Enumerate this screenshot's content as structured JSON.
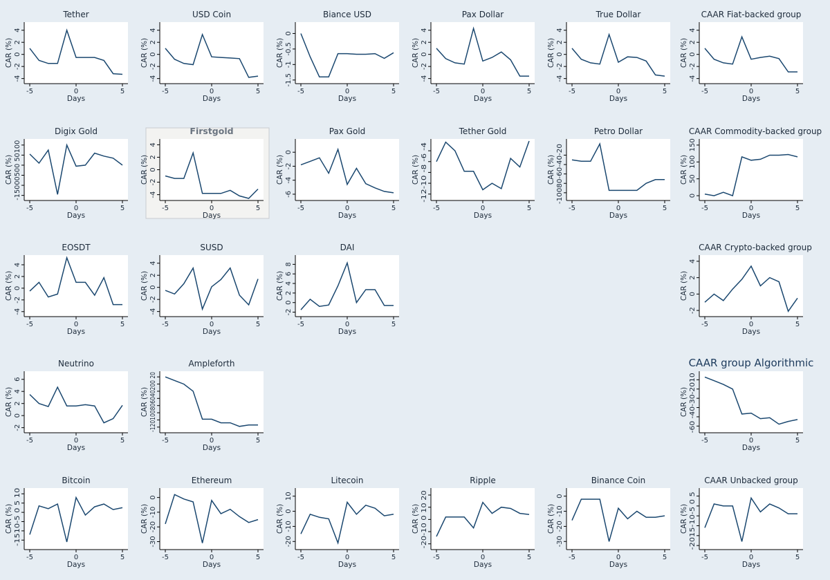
{
  "figure": {
    "background": "#e6edf3",
    "line_color": "#1a476f"
  },
  "chart_data": [
    {
      "type": "line",
      "title": "Tether",
      "xlabel": "Days",
      "ylabel": "CAR (%)",
      "x": [
        -5,
        -4,
        -3,
        -2,
        -1,
        0,
        1,
        2,
        3,
        4,
        5
      ],
      "values": [
        1,
        -1,
        -1.5,
        -1.5,
        4,
        -0.5,
        -0.5,
        -0.5,
        -1,
        -3.2,
        -3.3
      ],
      "ylim": [
        -4.5,
        5
      ],
      "yticks": [
        -4,
        -2,
        0,
        2,
        4
      ],
      "xticks": [
        -5,
        0,
        5
      ]
    },
    {
      "type": "line",
      "title": "USD Coin",
      "xlabel": "Days",
      "ylabel": "CAR (%)",
      "x": [
        -5,
        -4,
        -3,
        -2,
        -1,
        0,
        1,
        2,
        3,
        4,
        5
      ],
      "values": [
        1,
        -0.8,
        -1.5,
        -1.7,
        3.3,
        -0.4,
        -0.5,
        -0.6,
        -0.7,
        -3.8,
        -3.6
      ],
      "ylim": [
        -4.5,
        5
      ],
      "yticks": [
        -4,
        -2,
        0,
        2,
        4
      ],
      "xticks": [
        -5,
        0,
        5
      ]
    },
    {
      "type": "line",
      "title": "Biance USD",
      "xlabel": "Days",
      "ylabel": "CAR (%)",
      "x": [
        -5,
        -4,
        -3,
        -2,
        -1,
        0,
        1,
        2,
        3,
        4,
        5
      ],
      "values": [
        0,
        -0.75,
        -1.4,
        -1.4,
        -0.65,
        -0.65,
        -0.67,
        -0.67,
        -0.65,
        -0.8,
        -0.62
      ],
      "ylim": [
        -1.55,
        0.3
      ],
      "yticks": [
        -1.5,
        -1,
        -0.5,
        0
      ],
      "xticks": [
        -5,
        0,
        5
      ]
    },
    {
      "type": "line",
      "title": "Pax Dollar",
      "xlabel": "Days",
      "ylabel": "CAR (%)",
      "x": [
        -5,
        -4,
        -3,
        -2,
        -1,
        0,
        1,
        2,
        3,
        4,
        5
      ],
      "values": [
        1,
        -0.7,
        -1.4,
        -1.6,
        4.3,
        -1.1,
        -0.5,
        0.4,
        -0.9,
        -3.6,
        -3.6
      ],
      "ylim": [
        -4.5,
        5
      ],
      "yticks": [
        -4,
        -2,
        0,
        2,
        4
      ],
      "xticks": [
        -5,
        0,
        5
      ]
    },
    {
      "type": "line",
      "title": "True Dollar",
      "xlabel": "Days",
      "ylabel": "CAR (%)",
      "x": [
        -5,
        -4,
        -3,
        -2,
        -1,
        0,
        1,
        2,
        3,
        4,
        5
      ],
      "values": [
        1,
        -0.8,
        -1.4,
        -1.6,
        3.3,
        -1.3,
        -0.4,
        -0.5,
        -1.1,
        -3.4,
        -3.6
      ],
      "ylim": [
        -4.5,
        5
      ],
      "yticks": [
        -4,
        -2,
        0,
        2,
        4
      ],
      "xticks": [
        -5,
        0,
        5
      ]
    },
    {
      "type": "line",
      "title": "CAAR Fiat-backed group",
      "xlabel": "Days",
      "ylabel": "CAR (%)",
      "x": [
        -5,
        -4,
        -3,
        -2,
        -1,
        0,
        1,
        2,
        3,
        4,
        5
      ],
      "values": [
        1,
        -0.8,
        -1.4,
        -1.6,
        2.9,
        -0.8,
        -0.5,
        -0.3,
        -0.7,
        -2.9,
        -2.9
      ],
      "ylim": [
        -4.5,
        5
      ],
      "yticks": [
        -4,
        -2,
        0,
        2,
        4
      ],
      "xticks": [
        -5,
        0,
        5
      ]
    },
    {
      "type": "line",
      "title": "Digix Gold",
      "xlabel": "Days",
      "ylabel": "CAR (%)",
      "x": [
        -5,
        -4,
        -3,
        -2,
        -1,
        0,
        1,
        2,
        3,
        4,
        5
      ],
      "values": [
        55,
        10,
        75,
        -145,
        100,
        -5,
        0,
        60,
        45,
        35,
        0
      ],
      "ylim": [
        -165,
        120
      ],
      "yticks": [
        -150,
        -100,
        -50,
        0,
        50,
        100
      ],
      "ytick_text": "-15000500 50100",
      "xticks": [
        -5,
        0,
        5
      ]
    },
    {
      "type": "line",
      "title": "Firstgold",
      "xlabel": "Days",
      "ylabel": "CAR (%)",
      "x": [
        -5,
        -4,
        -3,
        -2,
        -1,
        0,
        1,
        2,
        3,
        4,
        5
      ],
      "values": [
        -1,
        -1.4,
        -1.4,
        2.7,
        -3.8,
        -3.8,
        -3.8,
        -3.3,
        -4.2,
        -4.6,
        -3.1
      ],
      "ylim": [
        -4.6,
        4.6
      ],
      "yticks": [
        -4,
        -2,
        0,
        2,
        4
      ],
      "xticks": [
        -5,
        0,
        5
      ]
    },
    {
      "type": "line",
      "title": "Pax Gold",
      "xlabel": "Days",
      "ylabel": "CAR (%)",
      "x": [
        -5,
        -4,
        -3,
        -2,
        -1,
        0,
        1,
        2,
        3,
        4,
        5
      ],
      "values": [
        -1.8,
        -1.3,
        -0.8,
        -3,
        0.4,
        -4.6,
        -2.3,
        -4.5,
        -5.1,
        -5.6,
        -5.8
      ],
      "ylim": [
        -6.6,
        1.6
      ],
      "yticks": [
        -6,
        -4,
        -2,
        0
      ],
      "xticks": [
        -5,
        0,
        5
      ]
    },
    {
      "type": "line",
      "title": "Tether Gold",
      "xlabel": "Days",
      "ylabel": "CAR (%)",
      "x": [
        -5,
        -4,
        -3,
        -2,
        -1,
        0,
        1,
        2,
        3,
        4,
        5
      ],
      "values": [
        -6,
        -2.4,
        -4,
        -7.8,
        -7.8,
        -11.2,
        -10,
        -11,
        -5.4,
        -7,
        -2.2
      ],
      "ylim": [
        -12.8,
        -2.2
      ],
      "yticks": [
        -12,
        -10,
        -8,
        -6,
        -4
      ],
      "ytick_text": "-12-10 -8 -6 -4",
      "xticks": [
        -5,
        0,
        5
      ]
    },
    {
      "type": "line",
      "title": "Petro Dollar",
      "xlabel": "Days",
      "ylabel": "CAR (%)",
      "x": [
        -5,
        -4,
        -3,
        -2,
        -1,
        0,
        1,
        2,
        3,
        4,
        5
      ],
      "values": [
        -30,
        -33,
        -33,
        4,
        -95,
        -95,
        -95,
        -95,
        -80,
        -72,
        -72
      ],
      "ylim": [
        -112,
        10
      ],
      "yticks": [
        -100,
        -80,
        -60,
        -40,
        -20
      ],
      "ytick_text": "-10080-60-40-20",
      "xticks": [
        -5,
        0,
        5
      ]
    },
    {
      "type": "line",
      "title": "CAAR Commodity-backed group",
      "xlabel": "Days",
      "ylabel": "CAR (%)",
      "x": [
        -5,
        -4,
        -3,
        -2,
        -1,
        0,
        1,
        2,
        3,
        4,
        5
      ],
      "values": [
        5,
        0,
        10,
        0,
        115,
        105,
        108,
        120,
        120,
        122,
        115
      ],
      "ylim": [
        -8,
        162
      ],
      "yticks": [
        0,
        50,
        100,
        150
      ],
      "xticks": [
        -5,
        0,
        5
      ]
    },
    {
      "type": "line",
      "title": "EOSDT",
      "xlabel": "Days",
      "ylabel": "CAR (%)",
      "x": [
        -5,
        -4,
        -3,
        -2,
        -1,
        0,
        1,
        2,
        3,
        4,
        5
      ],
      "values": [
        -0.5,
        1,
        -1.5,
        -1,
        5.2,
        1,
        1,
        -1.2,
        1.8,
        -2.8,
        -2.8
      ],
      "ylim": [
        -4.5,
        5.3
      ],
      "yticks": [
        -4,
        -2,
        0,
        2,
        4
      ],
      "xticks": [
        -5,
        0,
        5
      ]
    },
    {
      "type": "line",
      "title": "SUSD",
      "xlabel": "Days",
      "ylabel": "CAR (%)",
      "x": [
        -5,
        -4,
        -3,
        -2,
        -1,
        0,
        1,
        2,
        3,
        4,
        5
      ],
      "values": [
        -0.5,
        -1.1,
        0.6,
        3.2,
        -3.6,
        0.1,
        1.3,
        3.2,
        -1.3,
        -2.9,
        1.4
      ],
      "ylim": [
        -4.5,
        5
      ],
      "yticks": [
        -4,
        -2,
        0,
        2,
        4
      ],
      "xticks": [
        -5,
        0,
        5
      ]
    },
    {
      "type": "line",
      "title": "DAI",
      "xlabel": "Days",
      "ylabel": "CAR (%)",
      "x": [
        -5,
        -4,
        -3,
        -2,
        -1,
        0,
        1,
        2,
        3,
        4,
        5
      ],
      "values": [
        -1.5,
        0.7,
        -0.8,
        -0.5,
        3.5,
        8.3,
        0,
        2.7,
        2.7,
        -0.6,
        -0.6
      ],
      "ylim": [
        -2.5,
        9.5
      ],
      "yticks": [
        -2,
        0,
        2,
        4,
        6,
        8
      ],
      "xticks": [
        -5,
        0,
        5
      ]
    },
    {
      "type": "line",
      "title": "CAAR Crypto-backed group",
      "xlabel": "Days",
      "ylabel": "CAR (%)",
      "x": [
        -5,
        -4,
        -3,
        -2,
        -1,
        0,
        1,
        2,
        3,
        4,
        5
      ],
      "values": [
        -1,
        0,
        -0.8,
        0.6,
        1.8,
        3.4,
        1,
        2,
        1.5,
        -2.1,
        -0.5
      ],
      "ylim": [
        -2.5,
        4.5
      ],
      "yticks": [
        -2,
        0,
        2,
        4
      ],
      "xticks": [
        -5,
        0,
        5
      ]
    },
    {
      "type": "line",
      "title": "Neutrino",
      "xlabel": "Days",
      "ylabel": "CAR (%)",
      "x": [
        -5,
        -4,
        -3,
        -2,
        -1,
        0,
        1,
        2,
        3,
        4,
        5
      ],
      "values": [
        3.5,
        2,
        1.5,
        4.7,
        1.6,
        1.6,
        1.8,
        1.6,
        -1.2,
        -0.5,
        1.7
      ],
      "ylim": [
        -2.5,
        7
      ],
      "yticks": [
        -2,
        0,
        2,
        4,
        6
      ],
      "xticks": [
        -5,
        0,
        5
      ]
    },
    {
      "type": "line",
      "title": "Ampleforth",
      "xlabel": "Days",
      "ylabel": "CAR (%)",
      "x": [
        -5,
        -4,
        -3,
        -2,
        -1,
        0,
        1,
        2,
        3,
        4,
        5
      ],
      "values": [
        20,
        10,
        0,
        -20,
        -98,
        -98,
        -108,
        -108,
        -118,
        -114,
        -114
      ],
      "ylim": [
        -130,
        30
      ],
      "yticks": [
        -120,
        -100,
        -80,
        -60,
        -40,
        -20,
        0,
        20
      ],
      "ytick_text": "-120100806040200 20",
      "xticks": [
        -5,
        0,
        5
      ]
    },
    {
      "type": "line",
      "title": "CAAR group Algorithmic",
      "xlabel": "Days",
      "ylabel": "CAR (%)",
      "x": [
        -5,
        -4,
        -3,
        -2,
        -1,
        0,
        1,
        2,
        3,
        4,
        5
      ],
      "values": [
        -7,
        -11,
        -15,
        -20,
        -47,
        -46,
        -52,
        -51,
        -58,
        -55,
        -53
      ],
      "ylim": [
        -65,
        -3
      ],
      "yticks": [
        -60,
        -50,
        -40,
        -30,
        -20,
        -10
      ],
      "ytick_text": "-60 -40-30-2010",
      "xticks": [
        -5,
        0,
        5
      ]
    },
    {
      "type": "line",
      "title": "Bitcoin",
      "xlabel": "Days",
      "ylabel": "CAR (%)",
      "x": [
        -5,
        -4,
        -3,
        -2,
        -1,
        0,
        1,
        2,
        3,
        4,
        5
      ],
      "values": [
        -12,
        3.5,
        2,
        4.5,
        -16,
        8,
        -1.5,
        3,
        4.5,
        1.5,
        2.5
      ],
      "ylim": [
        -19,
        12
      ],
      "yticks": [
        -15,
        -10,
        -5,
        0,
        5,
        10
      ],
      "ytick_text": "-1510-5 0 5 10",
      "xticks": [
        -5,
        0,
        5
      ]
    },
    {
      "type": "line",
      "title": "Ethereum",
      "xlabel": "Days",
      "ylabel": "CAR (%)",
      "x": [
        -5,
        -4,
        -3,
        -2,
        -1,
        0,
        1,
        2,
        3,
        4,
        5
      ],
      "values": [
        -18,
        2,
        -1,
        -3,
        -31,
        -2,
        -11,
        -8,
        -13,
        -17,
        -15
      ],
      "ylim": [
        -34,
        5
      ],
      "yticks": [
        -30,
        -20,
        -10,
        0
      ],
      "xticks": [
        -5,
        0,
        5
      ]
    },
    {
      "type": "line",
      "title": "Litecoin",
      "xlabel": "Days",
      "ylabel": "CAR (%)",
      "x": [
        -5,
        -4,
        -3,
        -2,
        -1,
        0,
        1,
        2,
        3,
        4,
        5
      ],
      "values": [
        -15,
        -2,
        -4,
        -5,
        -21,
        6,
        -2,
        4,
        2,
        -3,
        -2
      ],
      "ylim": [
        -24,
        14
      ],
      "yticks": [
        -20,
        -10,
        0,
        10
      ],
      "xticks": [
        -5,
        0,
        5
      ]
    },
    {
      "type": "line",
      "title": "Ripple",
      "xlabel": "Days",
      "ylabel": "CAR (%)",
      "x": [
        -5,
        -4,
        -3,
        -2,
        -1,
        0,
        1,
        2,
        3,
        4,
        5
      ],
      "values": [
        -14,
        2,
        2,
        2,
        -7,
        14,
        5,
        10,
        9,
        5,
        4
      ],
      "ylim": [
        -23,
        24
      ],
      "yticks": [
        -20,
        -10,
        0,
        10,
        20
      ],
      "ytick_text": "-20-10 0 10 20",
      "xticks": [
        -5,
        0,
        5
      ]
    },
    {
      "type": "line",
      "title": "Binance Coin",
      "xlabel": "Days",
      "ylabel": "CAR (%)",
      "x": [
        -5,
        -4,
        -3,
        -2,
        -1,
        0,
        1,
        2,
        3,
        4,
        5
      ],
      "values": [
        -16,
        -2,
        -2,
        -2,
        -30,
        -8,
        -15,
        -10,
        -14,
        -14,
        -13
      ],
      "ylim": [
        -34,
        4
      ],
      "yticks": [
        -30,
        -20,
        -10,
        0
      ],
      "xticks": [
        -5,
        0,
        5
      ]
    },
    {
      "type": "line",
      "title": "CAAR Unbacked group",
      "xlabel": "Days",
      "ylabel": "CAR (%)",
      "x": [
        -5,
        -4,
        -3,
        -2,
        -1,
        0,
        1,
        2,
        3,
        4,
        5
      ],
      "values": [
        -11,
        1,
        0,
        0,
        -18,
        4,
        -3,
        1,
        -1,
        -4,
        -4
      ],
      "ylim": [
        -21,
        8
      ],
      "yticks": [
        -20,
        -15,
        -10,
        -5,
        0,
        5
      ],
      "ytick_text": "-2015-10-5 0 5",
      "xticks": [
        -5,
        0,
        5
      ]
    }
  ]
}
